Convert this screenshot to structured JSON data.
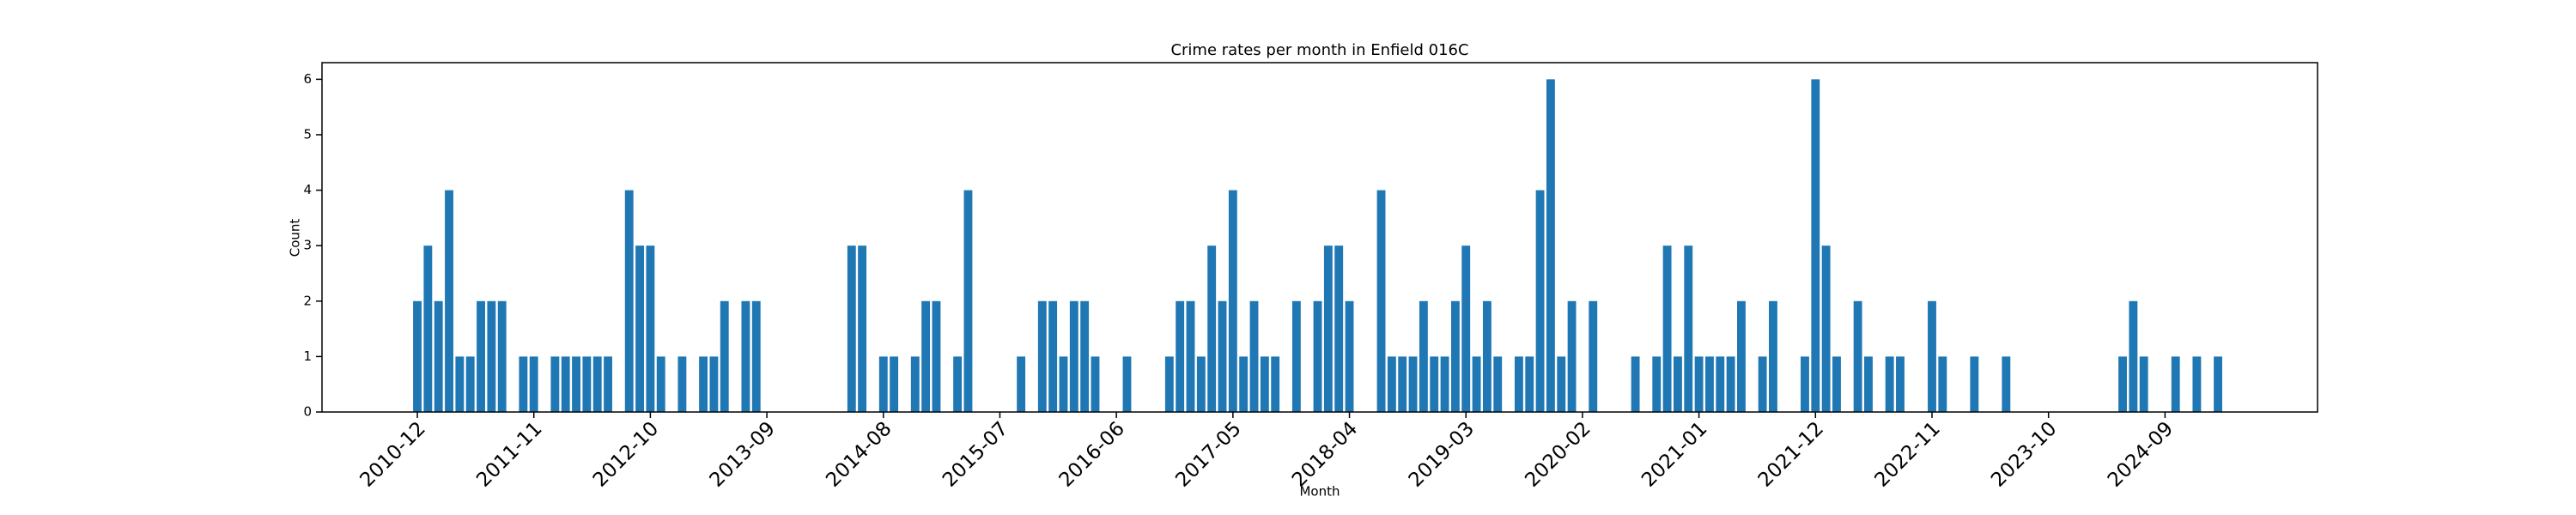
{
  "chart_data": {
    "type": "bar",
    "title": "Crime rates per month in Enfield 016C",
    "x_label": "Month",
    "y_label": "Count",
    "color": "#1f77b4",
    "categories": [
      "2010-12",
      null,
      null,
      null,
      null,
      null,
      null,
      null,
      null,
      null,
      null,
      "2011-11",
      null,
      null,
      null,
      null,
      null,
      null,
      null,
      null,
      null,
      null,
      "2012-10",
      null,
      null,
      null,
      null,
      null,
      null,
      null,
      null,
      null,
      null,
      "2013-09",
      null,
      null,
      null,
      null,
      null,
      null,
      null,
      null,
      null,
      null,
      "2014-08",
      null,
      null,
      null,
      null,
      null,
      null,
      null,
      null,
      null,
      null,
      "2015-07",
      null,
      null,
      null,
      null,
      null,
      null,
      null,
      null,
      null,
      null,
      "2016-06",
      null,
      null,
      null,
      null,
      null,
      null,
      null,
      null,
      null,
      null,
      "2017-05",
      null,
      null,
      null,
      null,
      null,
      null,
      null,
      null,
      null,
      null,
      "2018-04",
      null,
      null,
      null,
      null,
      null,
      null,
      null,
      null,
      null,
      null,
      "2019-03",
      null,
      null,
      null,
      null,
      null,
      null,
      null,
      null,
      null,
      null,
      "2020-02",
      null,
      null,
      null,
      null,
      null,
      null,
      null,
      null,
      null,
      null,
      "2021-01",
      null,
      null,
      null,
      null,
      null,
      null,
      null,
      null,
      null,
      null,
      "2021-12",
      null,
      null,
      null,
      null,
      null,
      null,
      null,
      null,
      null,
      null,
      "2022-11",
      null,
      null,
      null,
      null,
      null,
      null,
      null,
      null,
      null,
      null,
      "2023-10",
      null,
      null,
      null,
      null,
      null,
      null,
      null,
      null,
      null,
      null,
      "2024-09",
      null,
      null,
      null,
      null,
      null
    ],
    "values": [
      2,
      3,
      2,
      4,
      1,
      1,
      2,
      2,
      2,
      0,
      1,
      1,
      0,
      1,
      1,
      1,
      1,
      1,
      1,
      0,
      4,
      3,
      3,
      1,
      0,
      1,
      0,
      1,
      1,
      2,
      0,
      2,
      2,
      0,
      0,
      0,
      0,
      0,
      0,
      0,
      0,
      3,
      3,
      0,
      1,
      1,
      0,
      1,
      2,
      2,
      0,
      1,
      4,
      0,
      0,
      0,
      0,
      1,
      0,
      2,
      2,
      1,
      2,
      2,
      1,
      0,
      0,
      1,
      0,
      0,
      0,
      1,
      2,
      2,
      1,
      3,
      2,
      4,
      1,
      2,
      1,
      1,
      0,
      2,
      0,
      2,
      3,
      3,
      2,
      0,
      0,
      4,
      1,
      1,
      1,
      2,
      1,
      1,
      2,
      3,
      1,
      2,
      1,
      0,
      1,
      1,
      4,
      6,
      1,
      2,
      0,
      2,
      0,
      0,
      0,
      1,
      0,
      1,
      3,
      1,
      3,
      1,
      1,
      1,
      1,
      2,
      0,
      1,
      2,
      0,
      0,
      1,
      6,
      3,
      1,
      0,
      2,
      1,
      0,
      1,
      1,
      0,
      0,
      2,
      1,
      0,
      0,
      1,
      0,
      0,
      1,
      0,
      0,
      0,
      0,
      0,
      0,
      0,
      0,
      0,
      0,
      1,
      2,
      1,
      0,
      0,
      1,
      0,
      1,
      0,
      1
    ],
    "ylim": [
      0,
      6.3
    ],
    "yticks": [
      0,
      1,
      2,
      3,
      4,
      5,
      6
    ]
  }
}
